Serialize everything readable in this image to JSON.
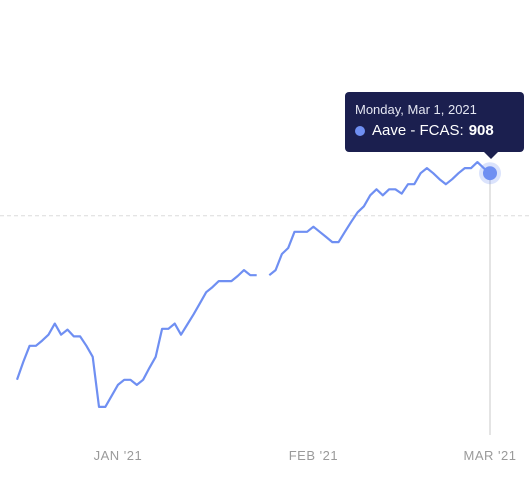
{
  "chart_data": {
    "type": "line",
    "categories": [
      null,
      null,
      null,
      null,
      null,
      null,
      null,
      null,
      null,
      null,
      null,
      null,
      null,
      null,
      null,
      null,
      "JAN '21",
      null,
      null,
      null,
      null,
      null,
      null,
      null,
      null,
      null,
      null,
      null,
      null,
      null,
      null,
      null,
      null,
      null,
      null,
      null,
      null,
      null,
      null,
      null,
      null,
      null,
      null,
      null,
      null,
      null,
      null,
      "FEB '21",
      null,
      null,
      null,
      null,
      null,
      null,
      null,
      null,
      null,
      null,
      null,
      null,
      null,
      null,
      null,
      null,
      null,
      null,
      null,
      null,
      null,
      null,
      null,
      null,
      null,
      null,
      null,
      "MAR '21"
    ],
    "series": [
      {
        "color": "#6f8ff2",
        "values": [
          665,
          686,
          705,
          705,
          711,
          718,
          731,
          718,
          724,
          716,
          716,
          705,
          692,
          633,
          633,
          646,
          659,
          665,
          665,
          659,
          665,
          679,
          692,
          725,
          725,
          731,
          718,
          730,
          742,
          755,
          768,
          774,
          781,
          781,
          781,
          787,
          794,
          788,
          788,
          null,
          788,
          794,
          813,
          820,
          839,
          839,
          839,
          845,
          839,
          833,
          827,
          827,
          839,
          851,
          862,
          869,
          882,
          889,
          882,
          889,
          889,
          884,
          895,
          895,
          908,
          914,
          908,
          901,
          895,
          901,
          908,
          914,
          914,
          921,
          914,
          908
        ]
      }
    ],
    "ylim": [
      600,
      1000
    ],
    "reference_line": 858,
    "tooltip": {
      "title": "Monday, Mar 1, 2021",
      "label": "Aave - FCAS:"
    }
  }
}
